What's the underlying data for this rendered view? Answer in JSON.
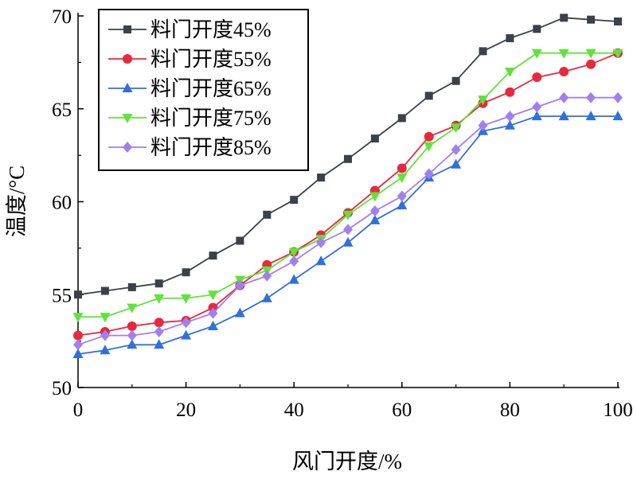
{
  "chart_data": {
    "type": "line",
    "xlabel": "风门开度/%",
    "ylabel": "温度/°C",
    "xlim": [
      0,
      100
    ],
    "ylim": [
      50,
      70
    ],
    "xticks": [
      0,
      20,
      40,
      60,
      80,
      100
    ],
    "yticks": [
      50,
      55,
      60,
      65,
      70
    ],
    "x": [
      0,
      5,
      10,
      15,
      20,
      25,
      30,
      35,
      40,
      45,
      50,
      55,
      60,
      65,
      70,
      75,
      80,
      85,
      90,
      95,
      100
    ],
    "grid": false,
    "legend_position": "top-left",
    "series": [
      {
        "name": "料门开度45%",
        "color": "#3b4146",
        "marker": "square",
        "values": [
          55.0,
          55.2,
          55.4,
          55.6,
          56.2,
          57.1,
          57.9,
          59.3,
          60.1,
          61.3,
          62.3,
          63.4,
          64.5,
          65.7,
          66.5,
          68.1,
          68.8,
          69.3,
          69.9,
          69.8,
          69.7
        ]
      },
      {
        "name": "料门开度55%",
        "color": "#e8283f",
        "marker": "circle",
        "values": [
          52.8,
          53.0,
          53.3,
          53.5,
          53.6,
          54.3,
          55.5,
          56.6,
          57.3,
          58.2,
          59.4,
          60.6,
          61.8,
          63.5,
          64.1,
          65.3,
          65.9,
          66.7,
          67.0,
          67.4,
          68.0
        ]
      },
      {
        "name": "料门开度65%",
        "color": "#2f6fe0",
        "marker": "triangle-up",
        "values": [
          51.8,
          52.0,
          52.3,
          52.3,
          52.8,
          53.3,
          54.0,
          54.8,
          55.8,
          56.8,
          57.8,
          59.0,
          59.8,
          61.3,
          62.0,
          63.8,
          64.1,
          64.6,
          64.6,
          64.6,
          64.6
        ]
      },
      {
        "name": "料门开度75%",
        "color": "#5fe33a",
        "marker": "triangle-down",
        "values": [
          53.8,
          53.8,
          54.3,
          54.8,
          54.8,
          55.0,
          55.8,
          56.3,
          57.3,
          58.0,
          59.3,
          60.3,
          61.3,
          63.0,
          64.0,
          65.5,
          67.0,
          68.0,
          68.0,
          68.0,
          68.0
        ]
      },
      {
        "name": "料门开度85%",
        "color": "#a27ff0",
        "marker": "diamond",
        "values": [
          52.3,
          52.8,
          52.8,
          53.0,
          53.5,
          54.0,
          55.5,
          56.0,
          56.8,
          57.8,
          58.5,
          59.5,
          60.3,
          61.5,
          62.8,
          64.1,
          64.6,
          65.1,
          65.6,
          65.6,
          65.6
        ]
      }
    ]
  }
}
